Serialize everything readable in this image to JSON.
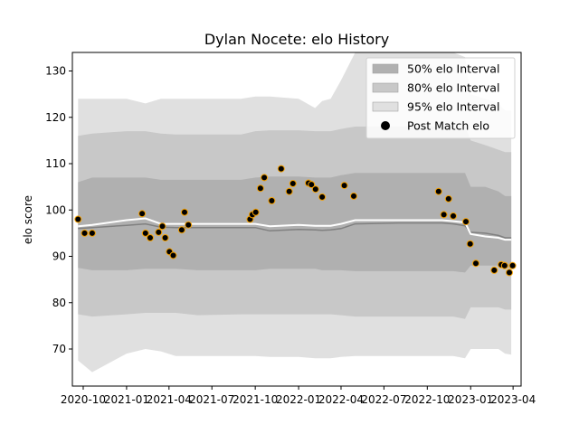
{
  "chart_data": {
    "type": "line",
    "title": "Dylan Nocete: elo History",
    "xlabel": "",
    "ylabel": "elo score",
    "xlim": [
      "2020-09-08",
      "2023-04-18"
    ],
    "ylim": [
      62,
      134
    ],
    "yticks": [
      70,
      80,
      90,
      100,
      110,
      120,
      130
    ],
    "xticks": [
      {
        "date": "2020-10-01",
        "label": "2020-10"
      },
      {
        "date": "2021-01-01",
        "label": "2021-01"
      },
      {
        "date": "2021-04-01",
        "label": "2021-04"
      },
      {
        "date": "2021-07-01",
        "label": "2021-07"
      },
      {
        "date": "2021-10-01",
        "label": "2021-10"
      },
      {
        "date": "2022-01-01",
        "label": "2022-01"
      },
      {
        "date": "2022-04-01",
        "label": "2022-04"
      },
      {
        "date": "2022-07-01",
        "label": "2022-07"
      },
      {
        "date": "2022-10-01",
        "label": "2022-10"
      },
      {
        "date": "2023-01-01",
        "label": "2023-01"
      },
      {
        "date": "2023-04-01",
        "label": "2023-04"
      }
    ],
    "grid": false,
    "legend": {
      "position": "top-right",
      "entries": [
        {
          "label": "50% elo Interval",
          "color": "#b0b0b0",
          "kind": "patch"
        },
        {
          "label": "80% elo Interval",
          "color": "#c8c8c8",
          "kind": "patch"
        },
        {
          "label": "95% elo Interval",
          "color": "#e0e0e0",
          "kind": "patch"
        },
        {
          "label": "Post Match elo",
          "color": "#000000",
          "kind": "marker"
        }
      ]
    },
    "colors": {
      "band50": "#b0b0b0",
      "band80": "#c8c8c8",
      "band95": "#e0e0e0",
      "mean_line": "#808080",
      "median_line": "#ffffff",
      "marker_fill": "#000000",
      "marker_edge": "#f5a000"
    },
    "bands": {
      "dates": [
        "2020-09-20",
        "2020-10-20",
        "2021-01-01",
        "2021-02-10",
        "2021-03-15",
        "2021-04-15",
        "2021-06-01",
        "2021-09-01",
        "2021-10-01",
        "2021-11-01",
        "2022-01-01",
        "2022-02-05",
        "2022-02-20",
        "2022-03-10",
        "2022-04-01",
        "2022-05-01",
        "2022-08-01",
        "2022-11-01",
        "2022-11-25",
        "2022-12-20",
        "2023-01-01",
        "2023-02-01",
        "2023-03-01",
        "2023-03-15",
        "2023-03-28"
      ],
      "p95_low": [
        67.5,
        65.0,
        69.0,
        70.0,
        69.5,
        68.5,
        68.5,
        68.5,
        68.5,
        68.3,
        68.3,
        68.0,
        68.0,
        68.0,
        68.3,
        68.5,
        68.5,
        68.5,
        68.5,
        68.0,
        70.0,
        70.0,
        70.0,
        69.0,
        68.8
      ],
      "p80_low": [
        77.5,
        77.0,
        77.5,
        77.8,
        77.8,
        77.8,
        77.3,
        77.5,
        77.5,
        77.5,
        77.5,
        77.5,
        77.5,
        77.5,
        77.3,
        77.0,
        77.0,
        77.0,
        77.0,
        76.5,
        79.0,
        79.0,
        79.0,
        78.5,
        78.5
      ],
      "p50_low": [
        87.5,
        87.0,
        87.0,
        87.3,
        87.3,
        87.3,
        87.0,
        87.0,
        87.0,
        87.3,
        87.3,
        87.3,
        87.0,
        87.0,
        87.0,
        86.8,
        86.8,
        86.8,
        86.8,
        86.5,
        88.0,
        88.0,
        88.0,
        87.5,
        87.5
      ],
      "p50_high": [
        106.0,
        107.0,
        107.0,
        107.0,
        106.5,
        106.5,
        106.5,
        106.5,
        107.0,
        107.2,
        107.2,
        107.0,
        107.0,
        107.0,
        107.5,
        108.0,
        108.0,
        108.0,
        108.0,
        108.0,
        105.0,
        105.0,
        104.0,
        103.0,
        103.0
      ],
      "p80_high": [
        116.0,
        116.5,
        117.0,
        117.0,
        116.5,
        116.3,
        116.3,
        116.3,
        117.0,
        117.2,
        117.2,
        117.0,
        117.0,
        117.0,
        117.5,
        118.0,
        118.0,
        118.0,
        118.0,
        118.0,
        115.0,
        114.0,
        113.0,
        112.5,
        112.5
      ],
      "p95_high": [
        124.0,
        124.0,
        124.0,
        123.0,
        124.0,
        124.0,
        124.0,
        124.0,
        124.5,
        124.5,
        124.0,
        122.0,
        123.5,
        124.0,
        128.0,
        134.0,
        134.0,
        134.0,
        134.0,
        133.0,
        125.0,
        124.0,
        123.0,
        121.5,
        121.5
      ],
      "mean": [
        96.0,
        96.2,
        96.7,
        97.0,
        96.3,
        96.2,
        96.2,
        96.2,
        96.2,
        95.5,
        95.8,
        95.7,
        95.6,
        95.7,
        96.0,
        97.0,
        97.2,
        97.2,
        97.0,
        96.6,
        95.2,
        95.0,
        94.5,
        94.0,
        94.0
      ],
      "median": [
        96.5,
        96.8,
        97.8,
        98.2,
        97.0,
        97.0,
        97.0,
        97.0,
        97.0,
        96.5,
        96.8,
        96.6,
        96.6,
        96.6,
        97.0,
        97.8,
        97.8,
        97.8,
        97.6,
        97.3,
        94.8,
        94.3,
        94.0,
        93.6,
        93.6
      ]
    },
    "post_match_elo": {
      "dates": [
        "2020-09-20",
        "2020-10-04",
        "2020-10-20",
        "2021-02-03",
        "2021-02-10",
        "2021-02-20",
        "2021-03-10",
        "2021-03-18",
        "2021-03-24",
        "2021-04-02",
        "2021-04-10",
        "2021-04-28",
        "2021-05-04",
        "2021-05-12",
        "2021-09-20",
        "2021-09-25",
        "2021-10-02",
        "2021-10-12",
        "2021-10-20",
        "2021-11-05",
        "2021-11-25",
        "2021-12-12",
        "2021-12-20",
        "2022-01-22",
        "2022-01-28",
        "2022-02-06",
        "2022-02-20",
        "2022-04-08",
        "2022-04-28",
        "2022-10-25",
        "2022-11-05",
        "2022-11-15",
        "2022-11-25",
        "2022-12-22",
        "2022-12-31",
        "2023-01-12",
        "2023-02-20",
        "2023-03-07",
        "2023-03-14",
        "2023-03-24",
        "2023-03-31"
      ],
      "values": [
        98.0,
        95.0,
        95.0,
        99.2,
        95.0,
        94.0,
        95.2,
        96.5,
        94.0,
        91.0,
        90.2,
        95.7,
        99.5,
        96.8,
        98.0,
        99.0,
        99.5,
        104.7,
        107.0,
        102.0,
        108.9,
        104.0,
        105.7,
        105.8,
        105.5,
        104.5,
        102.8,
        105.3,
        103.0,
        104.0,
        99.0,
        102.4,
        98.7,
        97.5,
        92.7,
        88.5,
        87.0,
        88.2,
        88.0,
        86.5,
        88.0
      ]
    }
  }
}
